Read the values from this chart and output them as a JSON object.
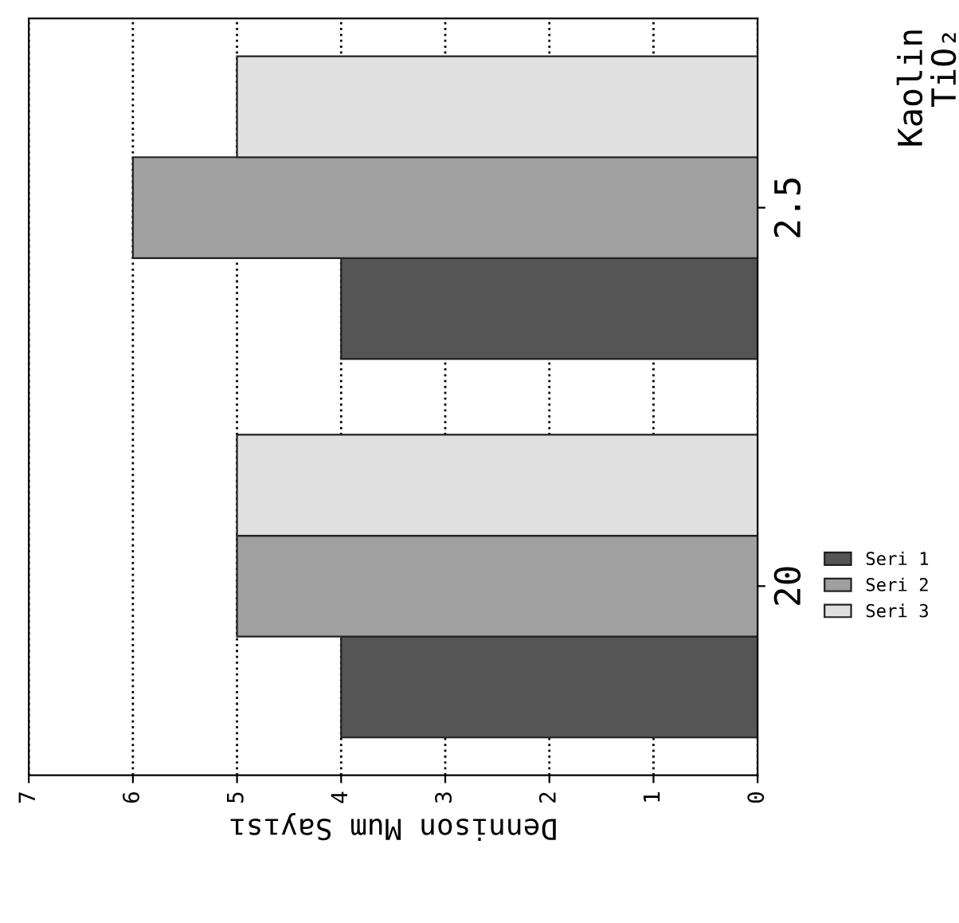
{
  "chart_data": {
    "type": "bar",
    "orientation": "horizontal",
    "categories": [
      "2.5",
      "20"
    ],
    "series": [
      {
        "name": "Seri 1",
        "color": "#555555",
        "values": [
          4,
          4
        ]
      },
      {
        "name": "Seri 2",
        "color": "#a0a0a0",
        "values": [
          6,
          5
        ]
      },
      {
        "name": "Seri 3",
        "color": "#e0e0e0",
        "values": [
          5,
          5
        ]
      }
    ],
    "xlabel": "Dennison Mum Sayısı",
    "xlim": [
      7,
      0
    ],
    "xticks": [
      7,
      6,
      5,
      4,
      3,
      2,
      1,
      0
    ],
    "grid": "x",
    "legend": "right",
    "annotations": [
      "Kaolin",
      "TiO₂"
    ]
  }
}
